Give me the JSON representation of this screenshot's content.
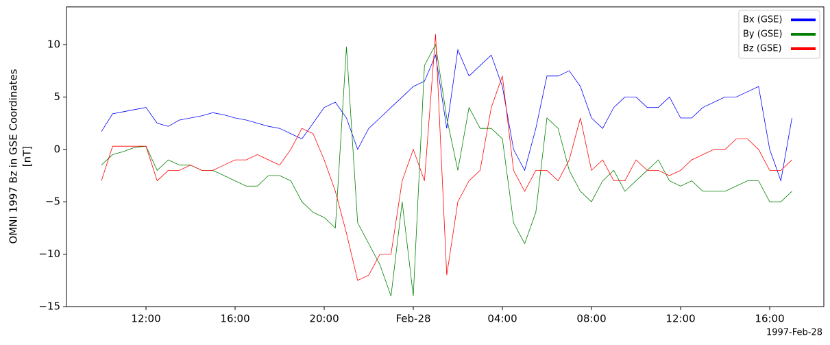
{
  "chart_data": {
    "type": "line",
    "ylabel": [
      "OMNI 1997 Bz in GSE Coordinates",
      "[nT]"
    ],
    "x_offset_label": "1997-Feb-28",
    "x": [
      -14,
      -13.5,
      -13,
      -12.5,
      -12,
      -11.5,
      -11,
      -10.5,
      -10,
      -9.5,
      -9,
      -8.5,
      -8,
      -7.5,
      -7,
      -6.5,
      -6,
      -5.5,
      -5,
      -4.5,
      -4,
      -3.5,
      -3,
      -2.5,
      -2,
      -1.5,
      -1,
      -0.5,
      0,
      0.5,
      1,
      1.5,
      2,
      2.5,
      3,
      3.5,
      4,
      4.5,
      5,
      5.5,
      6,
      6.5,
      7,
      7.5,
      8,
      8.5,
      9,
      9.5,
      10,
      10.5,
      11,
      11.5,
      12,
      12.5,
      13,
      13.5,
      14,
      14.5,
      15,
      15.5,
      16,
      16.5,
      17
    ],
    "series": [
      {
        "name": "Bx (GSE)",
        "color": "#0000ff",
        "values": [
          1.7,
          3.4,
          3.6,
          3.8,
          4,
          2.5,
          2.2,
          2.8,
          3,
          3.2,
          3.5,
          3.3,
          3,
          2.8,
          2.5,
          2.2,
          2,
          1.5,
          1,
          2.5,
          4,
          4.5,
          3,
          0,
          2,
          3,
          4,
          5,
          6,
          6.5,
          9,
          2,
          9.5,
          7,
          8,
          9,
          6,
          0,
          -2,
          2,
          7,
          7,
          7.5,
          6,
          3,
          2,
          4,
          5,
          5,
          4,
          4,
          5,
          3,
          3,
          4,
          4.5,
          5,
          5,
          5.5,
          6,
          0,
          -3,
          3
        ]
      },
      {
        "name": "By (GSE)",
        "color": "#008000",
        "values": [
          -1.5,
          -0.5,
          -0.2,
          0.2,
          0.3,
          -2,
          -1,
          -1.5,
          -1.5,
          -2,
          -2,
          -2.5,
          -3,
          -3.5,
          -3.5,
          -2.5,
          -2.5,
          -3,
          -5,
          -6,
          -6.5,
          -7.5,
          9.8,
          -7,
          -9,
          -11,
          -14,
          -5,
          -14,
          8,
          10,
          3,
          -2,
          4,
          2,
          2,
          1,
          -7,
          -9,
          -6,
          3,
          2,
          -2,
          -4,
          -5,
          -3,
          -2,
          -4,
          -3,
          -2,
          -1,
          -3,
          -3.5,
          -3,
          -4,
          -4,
          -4,
          -3.5,
          -3,
          -3,
          -5,
          -5,
          -4
        ]
      },
      {
        "name": "Bz (GSE)",
        "color": "#ff0000",
        "values": [
          -3,
          0.3,
          0.3,
          0.3,
          0.3,
          -3,
          -2,
          -2,
          -1.5,
          -2,
          -2,
          -1.5,
          -1,
          -1,
          -0.5,
          -1,
          -1.5,
          0,
          2,
          1.5,
          -1,
          -4,
          -8,
          -12.5,
          -12,
          -10,
          -10,
          -3,
          0,
          -3,
          11,
          -12,
          -5,
          -3,
          -2,
          4,
          7,
          -2,
          -4,
          -2,
          -2,
          -3,
          -1,
          3,
          -2,
          -1,
          -3,
          -3,
          -1,
          -2,
          -2,
          -2.5,
          -2,
          -1,
          -0.5,
          0,
          0,
          1,
          1,
          0,
          -2,
          -2,
          -1
        ]
      }
    ],
    "xlim": [
      -15.57,
      18.43
    ],
    "xticks": [
      {
        "value": -12,
        "label": "12:00"
      },
      {
        "value": -8,
        "label": "16:00"
      },
      {
        "value": -4,
        "label": "20:00"
      },
      {
        "value": 0,
        "label": "Feb-28"
      },
      {
        "value": 4,
        "label": "04:00"
      },
      {
        "value": 8,
        "label": "08:00"
      },
      {
        "value": 12,
        "label": "12:00"
      },
      {
        "value": 16,
        "label": "16:00"
      }
    ],
    "ylim": [
      -15,
      13.6
    ],
    "yticks": [
      {
        "value": -15,
        "label": "−15"
      },
      {
        "value": -10,
        "label": "−10"
      },
      {
        "value": -5,
        "label": "−5"
      },
      0,
      5,
      10
    ],
    "legend": "upper right"
  }
}
